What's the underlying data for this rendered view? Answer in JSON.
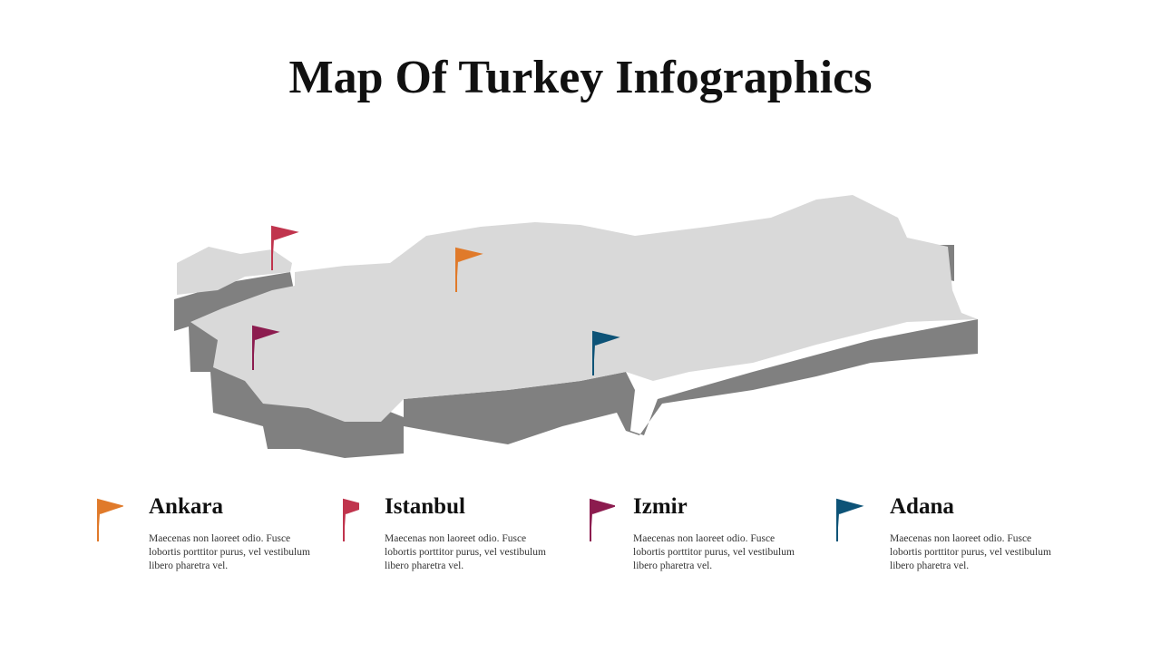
{
  "header": {
    "title": "Map Of Turkey Infographics"
  },
  "cities": [
    {
      "name": "Ankara",
      "text": "Maecenas non laoreet odio. Fusce lobortis porttitor purus, vel vestibulum libero pharetra vel."
    },
    {
      "name": "Istanbul",
      "text": "Maecenas non laoreet odio. Fusce lobortis porttitor purus, vel vestibulum libero pharetra vel."
    },
    {
      "name": "Izmir",
      "text": "Maecenas non laoreet odio. Fusce lobortis porttitor purus, vel vestibulum libero pharetra vel."
    },
    {
      "name": "Adana",
      "text": "Maecenas non laoreet odio. Fusce lobortis porttitor purus, vel vestibulum libero pharetra vel."
    }
  ]
}
